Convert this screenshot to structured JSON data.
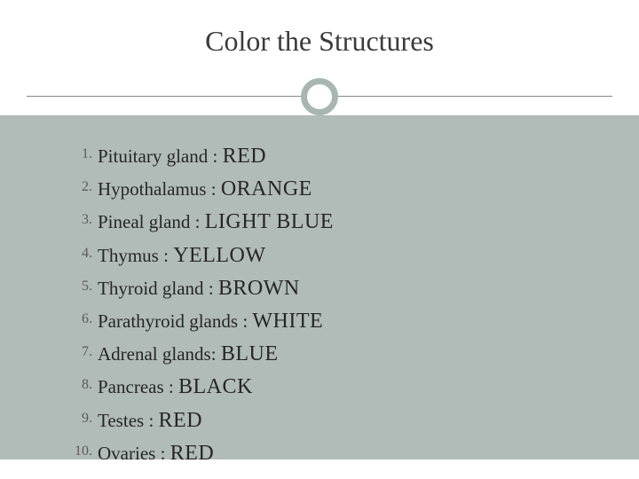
{
  "title": "Color the Structures",
  "title_fontsize": 32,
  "title_color": "#3b3b3b",
  "background_top": "#ffffff",
  "background_body": "#b1bcb8",
  "circle_border_color": "#a8b6b2",
  "divider_color": "#888888",
  "text_color": "#262626",
  "number_color": "#5a5a5a",
  "list_fontsize": 21,
  "colorname_fontsize": 24,
  "items": [
    {
      "structure": "Pituitary gland",
      "separator": " :  ",
      "color": "RED"
    },
    {
      "structure": "Hypothalamus",
      "separator": "  :  ",
      "color": "ORANGE"
    },
    {
      "structure": "Pineal gland",
      "separator": "  :  ",
      "color": "LIGHT BLUE"
    },
    {
      "structure": "Thymus",
      "separator": "  :  ",
      "color": "YELLOW"
    },
    {
      "structure": "Thyroid gland",
      "separator": "  :  ",
      "color": "BROWN"
    },
    {
      "structure": "Parathyroid glands",
      "separator": "  :  ",
      "color": "WHITE"
    },
    {
      "structure": "Adrenal glands",
      "separator": ": ",
      "color": "BLUE"
    },
    {
      "structure": "Pancreas",
      "separator": " :  ",
      "color": "BLACK"
    },
    {
      "structure": "Testes",
      "separator": "  : ",
      "color": "RED"
    },
    {
      "structure": "Ovaries",
      "separator": "  : ",
      "color": "RED"
    }
  ]
}
